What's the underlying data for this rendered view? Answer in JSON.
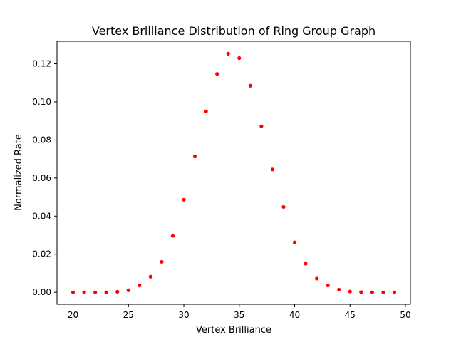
{
  "chart_data": {
    "type": "scatter",
    "title": "Vertex Brilliance Distribution of Ring Group Graph",
    "xlabel": "Vertex Brilliance",
    "ylabel": "Normalized Rate",
    "xlim": [
      18.55,
      50.45
    ],
    "ylim": [
      -0.0063,
      0.1318
    ],
    "xticks": [
      20,
      25,
      30,
      35,
      40,
      45,
      50
    ],
    "xtick_labels": [
      "20",
      "25",
      "30",
      "35",
      "40",
      "45",
      "50"
    ],
    "yticks": [
      0.0,
      0.02,
      0.04,
      0.06,
      0.08,
      0.1,
      0.12
    ],
    "ytick_labels": [
      "0.00",
      "0.02",
      "0.04",
      "0.06",
      "0.08",
      "0.10",
      "0.12"
    ],
    "grid": false,
    "marker_color": "#ff0000",
    "series": [
      {
        "x": [
          20,
          21,
          22,
          23,
          24,
          25,
          26,
          27,
          28,
          29,
          30,
          31,
          32,
          33,
          34,
          35,
          36,
          37,
          38,
          39,
          40,
          41,
          42,
          43,
          44,
          45,
          46,
          47,
          48,
          49
        ],
        "y": [
          0.0,
          0.0,
          0.0,
          0.0,
          0.0003,
          0.0011,
          0.0036,
          0.0082,
          0.016,
          0.0296,
          0.0486,
          0.0713,
          0.095,
          0.1147,
          0.1253,
          0.123,
          0.1085,
          0.0872,
          0.0645,
          0.0448,
          0.0262,
          0.015,
          0.0072,
          0.0036,
          0.0014,
          0.0004,
          0.0001,
          0.0,
          0.0,
          0.0
        ]
      }
    ]
  }
}
